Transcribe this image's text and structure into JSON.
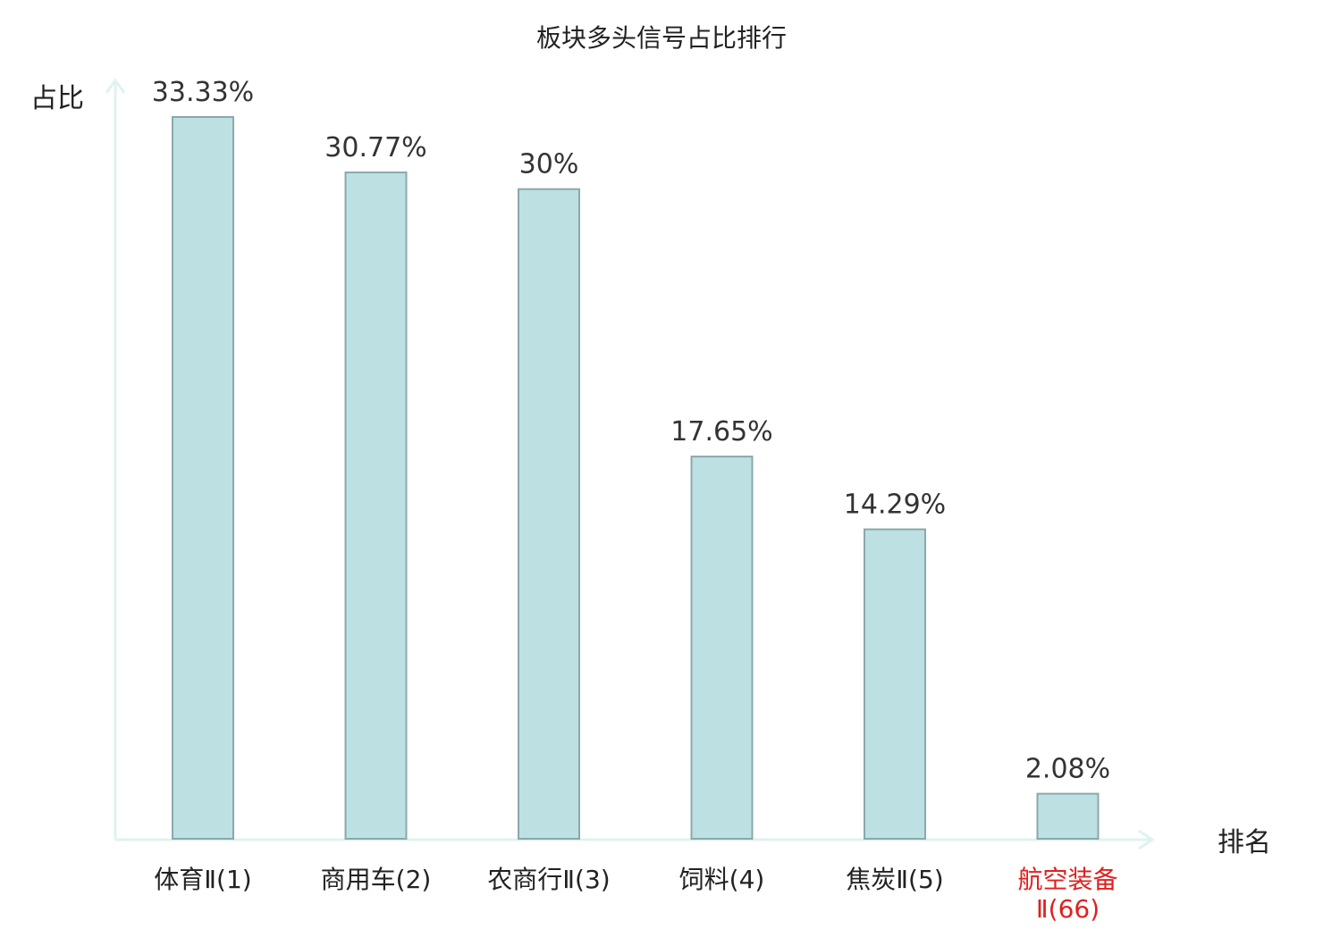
{
  "chart_data": {
    "type": "bar",
    "title": "板块多头信号占比排行",
    "ylabel": "占比",
    "xlabel": "排名",
    "categories": [
      "体育Ⅱ(1)",
      "商用车(2)",
      "农商行Ⅱ(3)",
      "饲料(4)",
      "焦炭Ⅱ(5)",
      "航空装备Ⅱ(66)"
    ],
    "category_lines": [
      [
        "体育Ⅱ(1)"
      ],
      [
        "商用车(2)"
      ],
      [
        "农商行Ⅱ(3)"
      ],
      [
        "饲料(4)"
      ],
      [
        "焦炭Ⅱ(5)"
      ],
      [
        "航空装备",
        "Ⅱ(66)"
      ]
    ],
    "values": [
      33.33,
      30.77,
      30,
      17.65,
      14.29,
      2.08
    ],
    "value_labels": [
      "33.33%",
      "30.77%",
      "30%",
      "17.65%",
      "14.29%",
      "2.08%"
    ],
    "highlight_index": 5,
    "ylim": [
      0,
      35
    ],
    "grid": false,
    "colors": {
      "bar_fill": "#bde0e3",
      "bar_stroke": "#8aa8ab",
      "axis": "#e0f2ef",
      "label": "#222222",
      "value_label": "#333333",
      "highlight": "#e02020"
    }
  }
}
